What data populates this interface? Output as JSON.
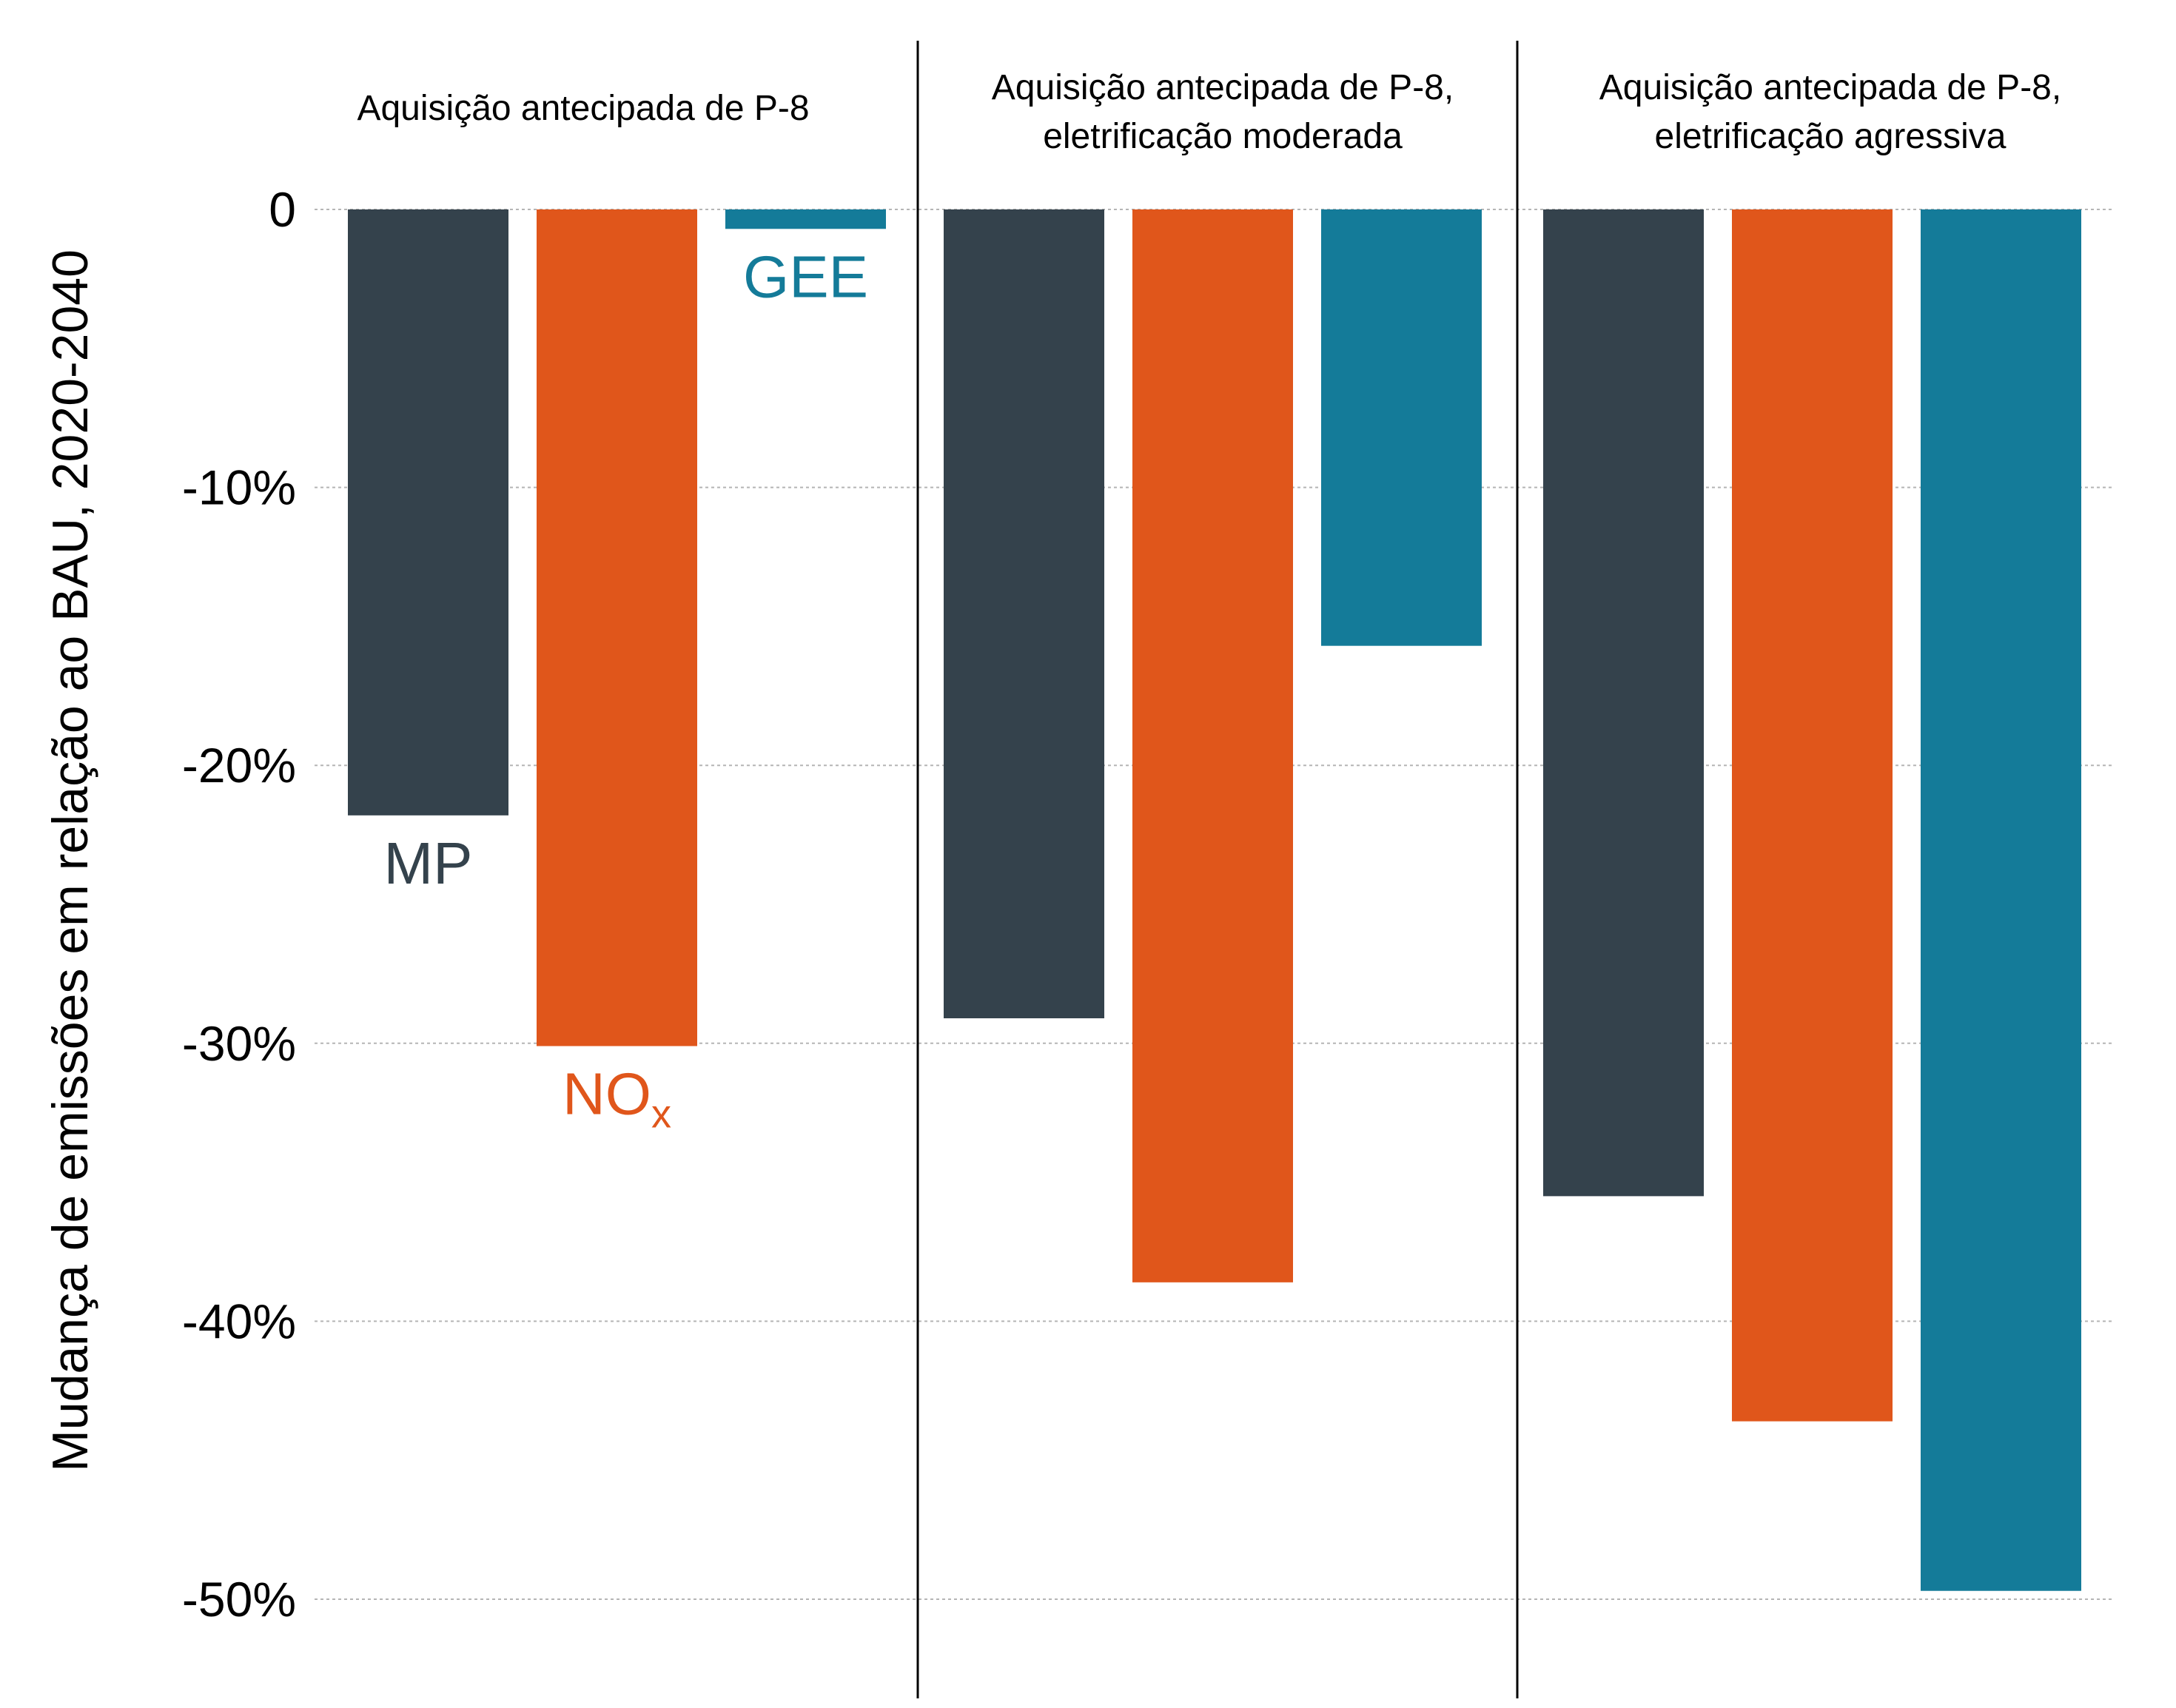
{
  "chart_data": {
    "type": "bar",
    "ylabel": "Mudança de emissões em relação ao BAU, 2020-2040",
    "ylim": [
      -50,
      0
    ],
    "yticks": [
      0,
      -10,
      -20,
      -30,
      -40,
      -50
    ],
    "ytick_labels": [
      "0",
      "-10%",
      "-20%",
      "-30%",
      "-40%",
      "-50%"
    ],
    "grid": true,
    "legend": "labels at bars in first panel",
    "colors": {
      "MP": "#34424c",
      "NOx": "#e0561b",
      "GEE": "#147b99"
    },
    "series_labels": [
      {
        "key": "MP",
        "text": "MP",
        "sub": ""
      },
      {
        "key": "NOx",
        "text": "NO",
        "sub": "x"
      },
      {
        "key": "GEE",
        "text": "GEE",
        "sub": ""
      }
    ],
    "panels": [
      {
        "title_lines": [
          "Aquisição antecipada de P-8"
        ],
        "values": {
          "MP": -21.8,
          "NOx": -30.1,
          "GEE": -0.7
        }
      },
      {
        "title_lines": [
          "Aquisição antecipada de P-8,",
          "eletrificação moderada"
        ],
        "values": {
          "MP": -29.1,
          "NOx": -38.6,
          "GEE": -15.7
        }
      },
      {
        "title_lines": [
          "Aquisição antecipada de P-8,",
          "eletrificação agressiva"
        ],
        "values": {
          "MP": -35.5,
          "NOx": -43.6,
          "GEE": -49.7
        }
      }
    ]
  }
}
